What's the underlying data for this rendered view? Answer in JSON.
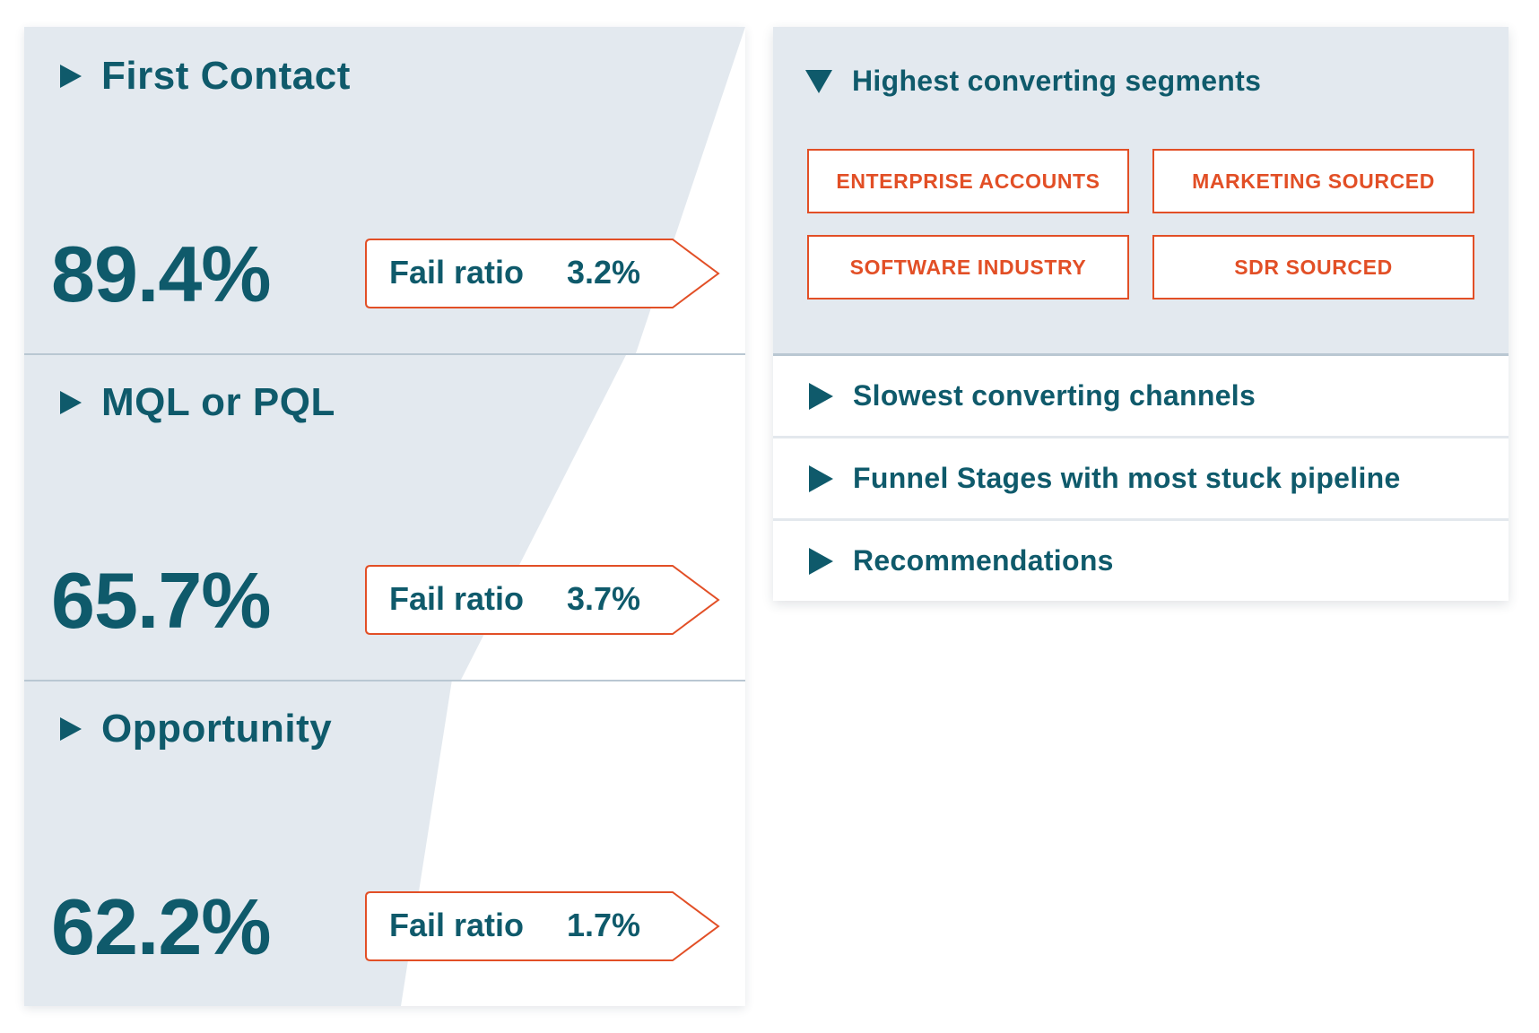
{
  "funnel": {
    "stages": [
      {
        "title": "First Contact",
        "percent": "89.4%",
        "fail_label": "Fail ratio",
        "fail_value": "3.2%"
      },
      {
        "title": "MQL or PQL",
        "percent": "65.7%",
        "fail_label": "Fail ratio",
        "fail_value": "3.7%"
      },
      {
        "title": "Opportunity",
        "percent": "62.2%",
        "fail_label": "Fail ratio",
        "fail_value": "1.7%"
      }
    ]
  },
  "insights": {
    "open_section": {
      "title": "Highest converting segments",
      "segments": [
        "ENTERPRISE ACCOUNTS",
        "MARKETING SOURCED",
        "SOFTWARE INDUSTRY",
        "SDR SOURCED"
      ]
    },
    "collapsed_sections": [
      {
        "title": "Slowest converting channels"
      },
      {
        "title": "Funnel Stages with most stuck pipeline"
      },
      {
        "title": "Recommendations"
      }
    ]
  },
  "colors": {
    "primary": "#0f5a6b",
    "accent": "#e24f26",
    "panel_bg": "#e3e9ef",
    "divider": "#b9c7d2"
  },
  "icons": {
    "expand": "triangle-right-icon",
    "collapse": "triangle-down-icon"
  }
}
